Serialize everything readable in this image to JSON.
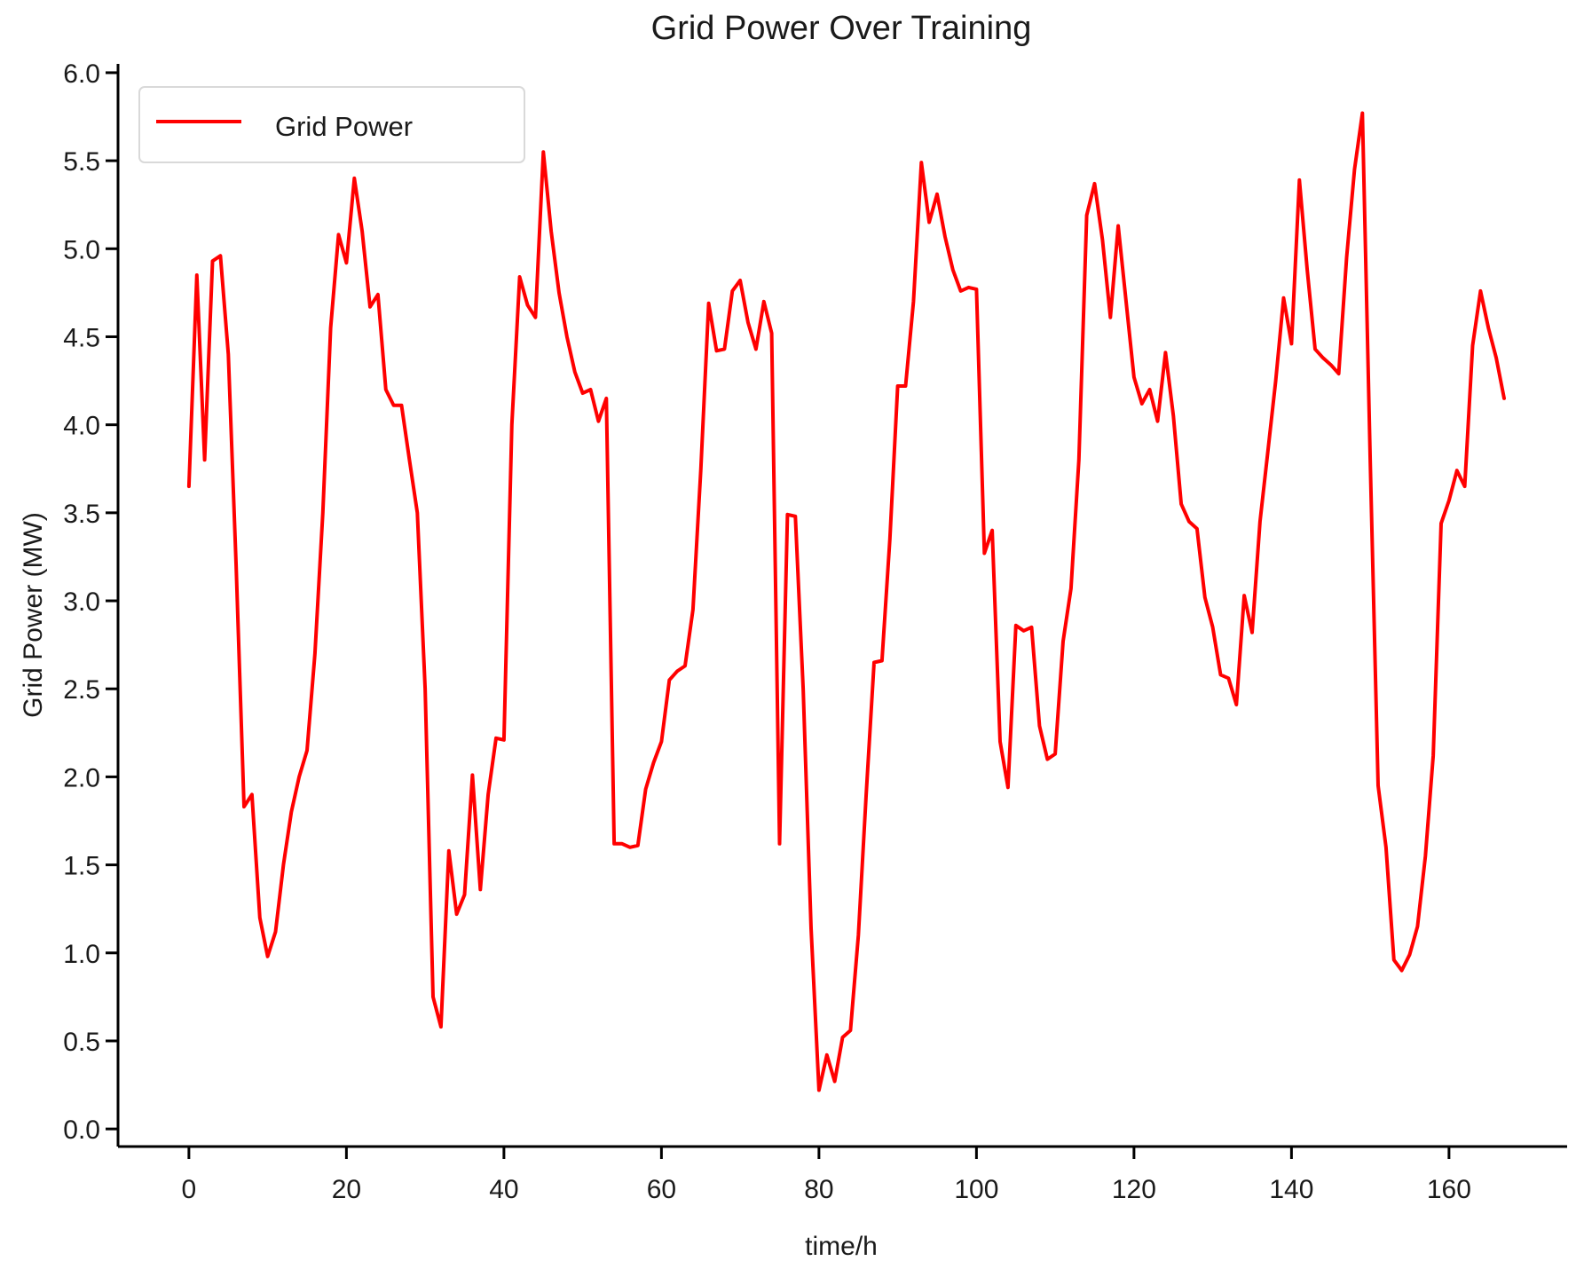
{
  "colors": {
    "series": "#ff0000",
    "axis": "#000000",
    "background": "#ffffff"
  },
  "chart_data": {
    "type": "line",
    "title": "Grid Power Over Training",
    "xlabel": "time/h",
    "ylabel": "Grid Power (MW)",
    "xlim": [
      -9,
      175
    ],
    "ylim": [
      -0.1,
      6.05
    ],
    "xticks": [
      0,
      20,
      40,
      60,
      80,
      100,
      120,
      140,
      160
    ],
    "yticks": [
      0.0,
      0.5,
      1.0,
      1.5,
      2.0,
      2.5,
      3.0,
      3.5,
      4.0,
      4.5,
      5.0,
      5.5,
      6.0
    ],
    "xtick_labels": [
      "0",
      "20",
      "40",
      "60",
      "80",
      "100",
      "120",
      "140",
      "160"
    ],
    "ytick_labels": [
      "0.0",
      "0.5",
      "1.0",
      "1.5",
      "2.0",
      "2.5",
      "3.0",
      "3.5",
      "4.0",
      "4.5",
      "5.0",
      "5.5",
      "6.0"
    ],
    "grid": false,
    "legend_position": "top-left",
    "series": [
      {
        "name": "Grid Power",
        "color": "#ff0000",
        "x": [
          0,
          1,
          2,
          3,
          4,
          5,
          6,
          7,
          8,
          9,
          10,
          11,
          12,
          13,
          14,
          15,
          16,
          17,
          18,
          19,
          20,
          21,
          22,
          23,
          24,
          25,
          26,
          27,
          28,
          29,
          30,
          31,
          32,
          33,
          34,
          35,
          36,
          37,
          38,
          39,
          40,
          41,
          42,
          43,
          44,
          45,
          46,
          47,
          48,
          49,
          50,
          51,
          52,
          53,
          54,
          55,
          56,
          57,
          58,
          59,
          60,
          61,
          62,
          63,
          64,
          65,
          66,
          67,
          68,
          69,
          70,
          71,
          72,
          73,
          74,
          75,
          76,
          77,
          78,
          79,
          80,
          81,
          82,
          83,
          84,
          85,
          86,
          87,
          88,
          89,
          90,
          91,
          92,
          93,
          94,
          95,
          96,
          97,
          98,
          99,
          100,
          101,
          102,
          103,
          104,
          105,
          106,
          107,
          108,
          109,
          110,
          111,
          112,
          113,
          114,
          115,
          116,
          117,
          118,
          119,
          120,
          121,
          122,
          123,
          124,
          125,
          126,
          127,
          128,
          129,
          130,
          131,
          132,
          133,
          134,
          135,
          136,
          137,
          138,
          139,
          140,
          141,
          142,
          143,
          144,
          145,
          146,
          147,
          148,
          149,
          150,
          151,
          152,
          153,
          154,
          155,
          156,
          157,
          158,
          159,
          160,
          161,
          162,
          163,
          164,
          165,
          166,
          167
        ],
        "values": [
          3.65,
          4.85,
          3.8,
          4.93,
          4.96,
          4.4,
          3.2,
          1.83,
          1.9,
          1.2,
          0.98,
          1.12,
          1.5,
          1.8,
          2.0,
          2.15,
          2.7,
          3.5,
          4.55,
          5.08,
          4.92,
          5.4,
          5.1,
          4.67,
          4.74,
          4.2,
          4.11,
          4.11,
          3.8,
          3.5,
          2.5,
          0.75,
          0.58,
          1.58,
          1.22,
          1.33,
          2.01,
          1.36,
          1.9,
          2.22,
          2.21,
          4.0,
          4.84,
          4.68,
          4.61,
          5.55,
          5.1,
          4.75,
          4.5,
          4.3,
          4.18,
          4.2,
          4.02,
          4.15,
          1.62,
          1.62,
          1.6,
          1.61,
          1.93,
          2.08,
          2.2,
          2.55,
          2.6,
          2.63,
          2.95,
          3.75,
          4.69,
          4.42,
          4.43,
          4.76,
          4.82,
          4.58,
          4.43,
          4.7,
          4.52,
          1.62,
          3.49,
          3.48,
          2.5,
          1.14,
          0.22,
          0.42,
          0.27,
          0.52,
          0.56,
          1.1,
          1.9,
          2.65,
          2.66,
          3.35,
          4.22,
          4.22,
          4.7,
          5.49,
          5.15,
          5.31,
          5.07,
          4.88,
          4.76,
          4.78,
          4.77,
          3.27,
          3.4,
          2.2,
          1.94,
          2.86,
          2.83,
          2.85,
          2.29,
          2.1,
          2.13,
          2.77,
          3.07,
          3.8,
          5.19,
          5.37,
          5.05,
          4.61,
          5.13,
          4.7,
          4.27,
          4.12,
          4.2,
          4.02,
          4.41,
          4.05,
          3.55,
          3.45,
          3.41,
          3.02,
          2.85,
          2.58,
          2.56,
          2.41,
          3.03,
          2.82,
          3.45,
          3.85,
          4.25,
          4.72,
          4.46,
          5.39,
          4.88,
          4.43,
          4.38,
          4.34,
          4.29,
          4.95,
          5.45,
          5.77,
          3.8,
          1.95,
          1.6,
          0.96,
          0.9,
          0.99,
          1.15,
          1.55,
          2.12,
          3.44,
          3.57,
          3.74,
          3.65,
          4.45,
          4.76,
          4.55,
          4.38,
          4.15
        ]
      }
    ]
  }
}
